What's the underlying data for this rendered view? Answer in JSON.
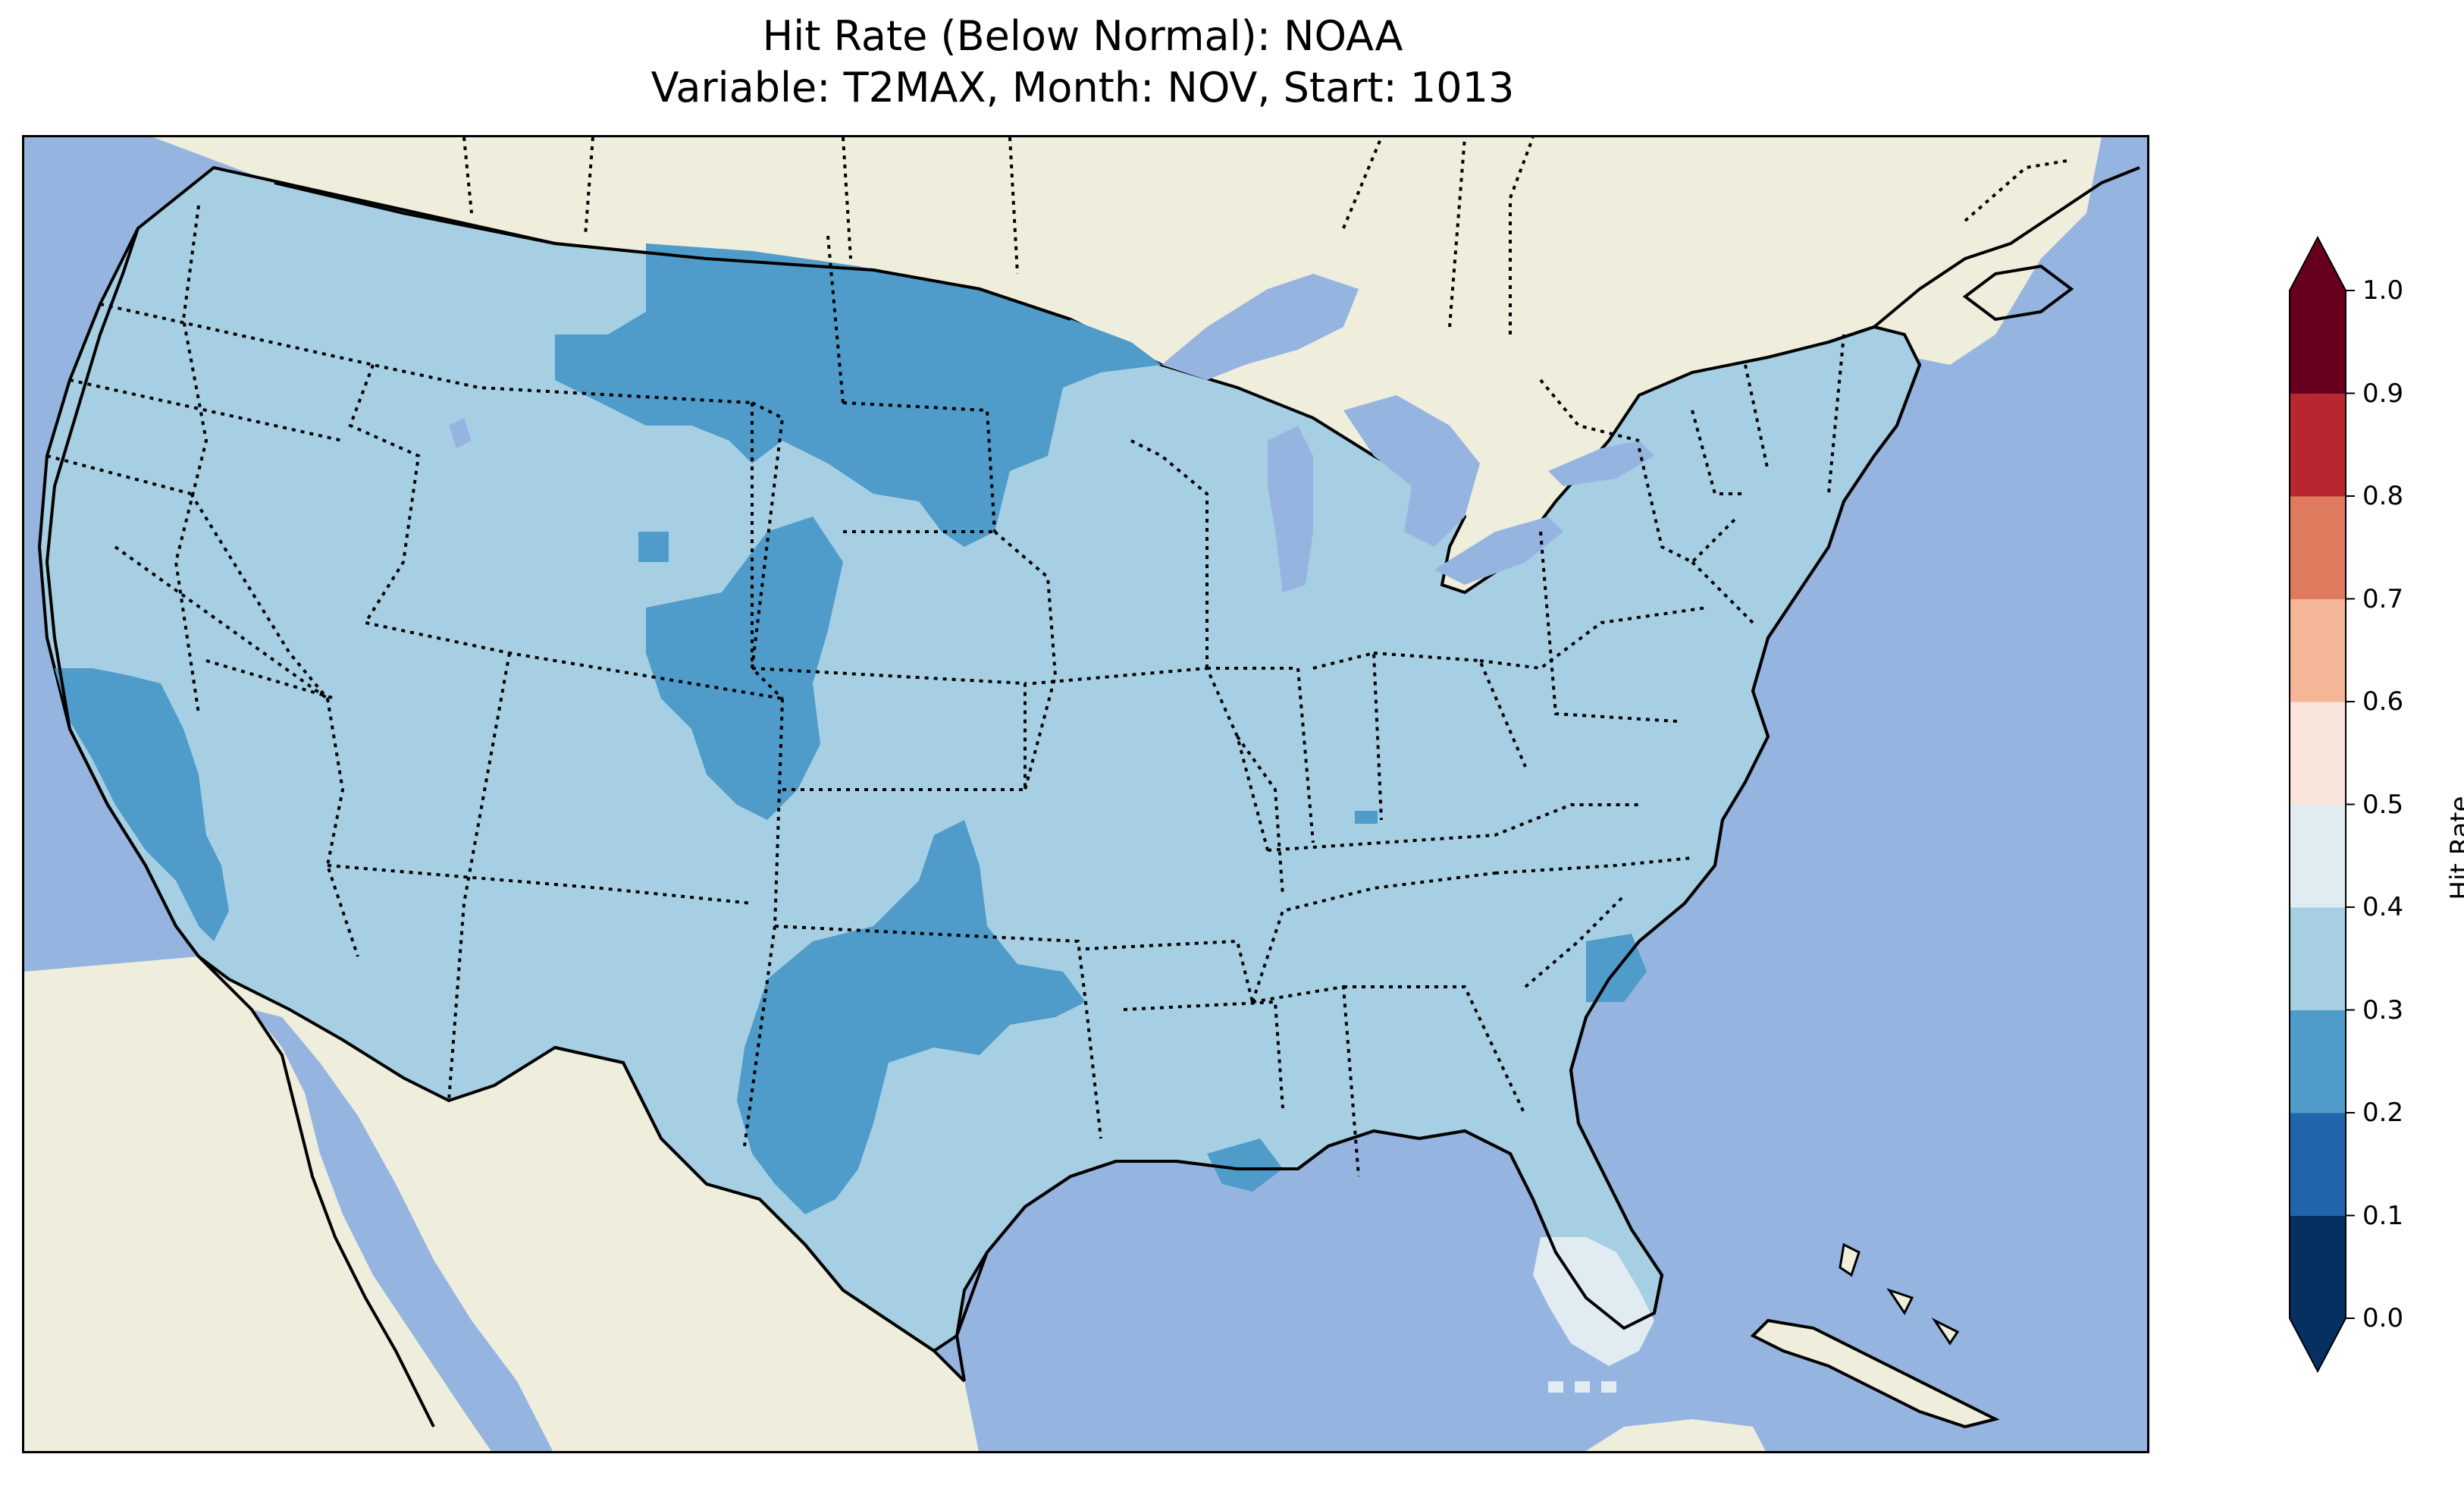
{
  "title": {
    "line1": "Hit Rate (Below Normal): NOAA",
    "line2": "Variable: T2MAX, Month: NOV, Start: 1013"
  },
  "colors": {
    "ocean": "#96b4e0",
    "land": "#efeddc",
    "lake": "#96b4e0",
    "hr_0_1": "#053061",
    "hr_1_2": "#2166ac",
    "hr_2_3": "#4f9bc9",
    "hr_3_4": "#a6cfe4",
    "hr_4_5": "#e1ebf2",
    "hr_5_6": "#f9e5dc",
    "hr_6_7": "#f5b698",
    "hr_7_8": "#e07a5e",
    "hr_8_9": "#b82730",
    "hr_9_10": "#67001f"
  },
  "colorbar": {
    "label": "Hit Rate",
    "ticks": [
      "0.0",
      "0.1",
      "0.2",
      "0.3",
      "0.4",
      "0.5",
      "0.6",
      "0.7",
      "0.8",
      "0.9",
      "1.0"
    ],
    "bins": [
      {
        "range": [
          0.0,
          0.1
        ],
        "color": "#053061"
      },
      {
        "range": [
          0.1,
          0.2
        ],
        "color": "#2166ac"
      },
      {
        "range": [
          0.2,
          0.3
        ],
        "color": "#4f9bc9"
      },
      {
        "range": [
          0.3,
          0.4
        ],
        "color": "#a6cfe4"
      },
      {
        "range": [
          0.4,
          0.5
        ],
        "color": "#e1ebf2"
      },
      {
        "range": [
          0.5,
          0.6
        ],
        "color": "#f9e5dc"
      },
      {
        "range": [
          0.6,
          0.7
        ],
        "color": "#f5b698"
      },
      {
        "range": [
          0.7,
          0.8
        ],
        "color": "#e07a5e"
      },
      {
        "range": [
          0.8,
          0.9
        ],
        "color": "#b82730"
      },
      {
        "range": [
          0.9,
          1.0
        ],
        "color": "#67001f"
      }
    ],
    "extend": "both"
  }
}
